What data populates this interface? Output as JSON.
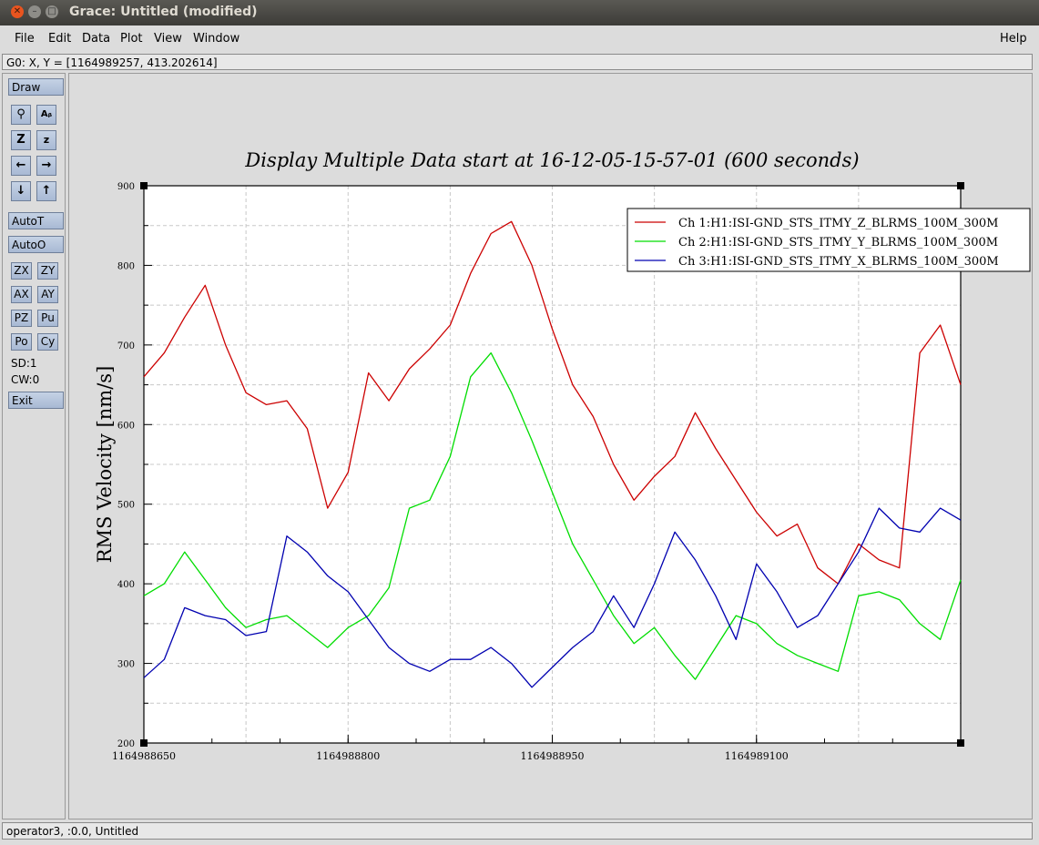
{
  "window": {
    "title": "Grace: Untitled (modified)"
  },
  "menu": [
    "File",
    "Edit",
    "Data",
    "Plot",
    "View",
    "Window"
  ],
  "menu_help": "Help",
  "coord_readout": "G0: X, Y = [1164989257, 413.202614]",
  "tools": {
    "draw": "Draw",
    "autot": "AutoT",
    "autoo": "AutoO",
    "zx": "ZX",
    "zy": "ZY",
    "ax": "AX",
    "ay": "AY",
    "pz": "PZ",
    "pu": "Pu",
    "po": "Po",
    "cy": "Cy",
    "sd": "SD:1",
    "cw": "CW:0",
    "exit": "Exit"
  },
  "status": "operator3, :0.0, Untitled",
  "colors": {
    "series1": "#cc0000",
    "series2": "#00dd00",
    "series3": "#0000b0"
  },
  "chart_data": {
    "type": "line",
    "title": "Display Multiple Data start at 16-12-05-15-57-01 (600 seconds)",
    "xlabel": "",
    "ylabel": "RMS Velocity [nm/s]",
    "xlim": [
      1164988650,
      1164989250
    ],
    "ylim": [
      200,
      900
    ],
    "xticks": [
      1164988650,
      1164988800,
      1164988950,
      1164989100
    ],
    "yticks": [
      200,
      300,
      400,
      500,
      600,
      700,
      800,
      900
    ],
    "grid": true,
    "legend_position": "top-right",
    "series": [
      {
        "name": "Ch 1:H1:ISI-GND_STS_ITMY_Z_BLRMS_100M_300M",
        "x": [
          1164988650,
          1164988665,
          1164988680,
          1164988695,
          1164988710,
          1164988725,
          1164988740,
          1164988755,
          1164988770,
          1164988785,
          1164988800,
          1164988815,
          1164988830,
          1164988845,
          1164988860,
          1164988875,
          1164988890,
          1164988905,
          1164988920,
          1164988935,
          1164988950,
          1164988965,
          1164988980,
          1164988995,
          1164989010,
          1164989025,
          1164989040,
          1164989055,
          1164989070,
          1164989085,
          1164989100,
          1164989115,
          1164989130,
          1164989145,
          1164989160,
          1164989175,
          1164989190,
          1164989205,
          1164989220,
          1164989235,
          1164989250
        ],
        "y": [
          660,
          690,
          735,
          775,
          700,
          640,
          625,
          630,
          595,
          495,
          540,
          665,
          630,
          670,
          695,
          725,
          790,
          840,
          855,
          800,
          720,
          650,
          610,
          550,
          505,
          535,
          560,
          615,
          570,
          530,
          490,
          460,
          475,
          420,
          400,
          450,
          430,
          420,
          690,
          725,
          650
        ]
      },
      {
        "name": "Ch 2:H1:ISI-GND_STS_ITMY_Y_BLRMS_100M_300M",
        "x": [
          1164988650,
          1164988665,
          1164988680,
          1164988695,
          1164988710,
          1164988725,
          1164988740,
          1164988755,
          1164988770,
          1164988785,
          1164988800,
          1164988815,
          1164988830,
          1164988845,
          1164988860,
          1164988875,
          1164988890,
          1164988905,
          1164988920,
          1164988935,
          1164988950,
          1164988965,
          1164988980,
          1164988995,
          1164989010,
          1164989025,
          1164989040,
          1164989055,
          1164989070,
          1164989085,
          1164989100,
          1164989115,
          1164989130,
          1164989145,
          1164989160,
          1164989175,
          1164989190,
          1164989205,
          1164989220,
          1164989235,
          1164989250
        ],
        "y": [
          385,
          400,
          440,
          405,
          370,
          345,
          355,
          360,
          340,
          320,
          345,
          360,
          395,
          495,
          505,
          560,
          660,
          690,
          640,
          580,
          515,
          450,
          405,
          360,
          325,
          345,
          310,
          280,
          320,
          360,
          350,
          325,
          310,
          300,
          290,
          385,
          390,
          380,
          350,
          330,
          405
        ]
      },
      {
        "name": "Ch 3:H1:ISI-GND_STS_ITMY_X_BLRMS_100M_300M",
        "x": [
          1164988650,
          1164988665,
          1164988680,
          1164988695,
          1164988710,
          1164988725,
          1164988740,
          1164988755,
          1164988770,
          1164988785,
          1164988800,
          1164988815,
          1164988830,
          1164988845,
          1164988860,
          1164988875,
          1164988890,
          1164988905,
          1164988920,
          1164988935,
          1164988950,
          1164988965,
          1164988980,
          1164988995,
          1164989010,
          1164989025,
          1164989040,
          1164989055,
          1164989070,
          1164989085,
          1164989100,
          1164989115,
          1164989130,
          1164989145,
          1164989160,
          1164989175,
          1164989190,
          1164989205,
          1164989220,
          1164989235,
          1164989250
        ],
        "y": [
          282,
          305,
          370,
          360,
          355,
          335,
          340,
          460,
          440,
          410,
          390,
          355,
          320,
          300,
          290,
          305,
          305,
          320,
          300,
          270,
          295,
          320,
          340,
          385,
          345,
          400,
          465,
          430,
          385,
          330,
          425,
          390,
          345,
          360,
          400,
          440,
          495,
          470,
          465,
          495,
          480
        ]
      }
    ]
  }
}
